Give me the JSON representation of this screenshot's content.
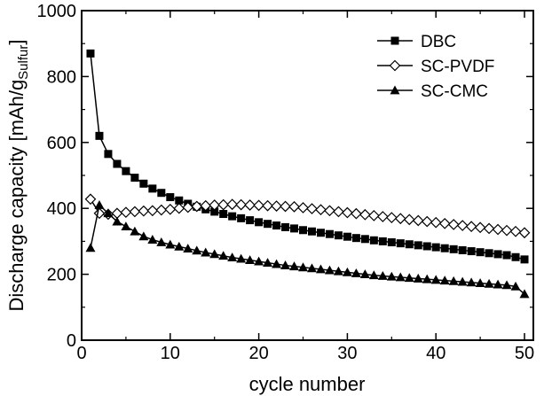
{
  "chart_data": {
    "type": "line",
    "title": "",
    "xlabel": "cycle number",
    "ylabel": {
      "prefix": "Discharge capacity [mAh/g",
      "subscript": "Sulfur",
      "suffix": "]"
    },
    "xlim": [
      0,
      51
    ],
    "ylim": [
      0,
      1000
    ],
    "xticks": [
      0,
      10,
      20,
      30,
      40,
      50
    ],
    "yticks": [
      0,
      200,
      400,
      600,
      800,
      1000
    ],
    "legend_position": "top-right",
    "grid": false,
    "x": [
      1,
      2,
      3,
      4,
      5,
      6,
      7,
      8,
      9,
      10,
      11,
      12,
      13,
      14,
      15,
      16,
      17,
      18,
      19,
      20,
      21,
      22,
      23,
      24,
      25,
      26,
      27,
      28,
      29,
      30,
      31,
      32,
      33,
      34,
      35,
      36,
      37,
      38,
      39,
      40,
      41,
      42,
      43,
      44,
      45,
      46,
      47,
      48,
      49,
      50
    ],
    "series": [
      {
        "name": "DBC",
        "marker": "filled-square",
        "values": [
          870,
          620,
          565,
          535,
          513,
          493,
          475,
          460,
          447,
          434,
          424,
          414,
          405,
          397,
          390,
          383,
          376,
          370,
          364,
          358,
          353,
          348,
          343,
          339,
          334,
          330,
          326,
          322,
          318,
          314,
          310,
          307,
          303,
          300,
          297,
          294,
          291,
          288,
          285,
          282,
          279,
          276,
          273,
          270,
          267,
          264,
          261,
          258,
          252,
          245
        ]
      },
      {
        "name": "SC-PVDF",
        "marker": "open-diamond",
        "values": [
          428,
          385,
          382,
          385,
          388,
          390,
          392,
          393,
          395,
          397,
          400,
          403,
          406,
          408,
          410,
          411,
          412,
          411,
          410,
          409,
          408,
          407,
          406,
          405,
          402,
          399,
          396,
          393,
          390,
          387,
          384,
          381,
          378,
          375,
          372,
          369,
          366,
          363,
          360,
          357,
          354,
          351,
          348,
          345,
          342,
          339,
          336,
          333,
          330,
          326
        ]
      },
      {
        "name": "SC-CMC",
        "marker": "filled-triangle",
        "values": [
          280,
          410,
          385,
          360,
          345,
          330,
          315,
          305,
          297,
          290,
          284,
          278,
          272,
          266,
          261,
          256,
          251,
          247,
          243,
          239,
          235,
          231,
          227,
          224,
          221,
          218,
          215,
          212,
          209,
          206,
          203,
          200,
          197,
          195,
          193,
          191,
          189,
          187,
          185,
          183,
          181,
          179,
          177,
          175,
          173,
          171,
          169,
          167,
          163,
          140
        ]
      }
    ]
  }
}
